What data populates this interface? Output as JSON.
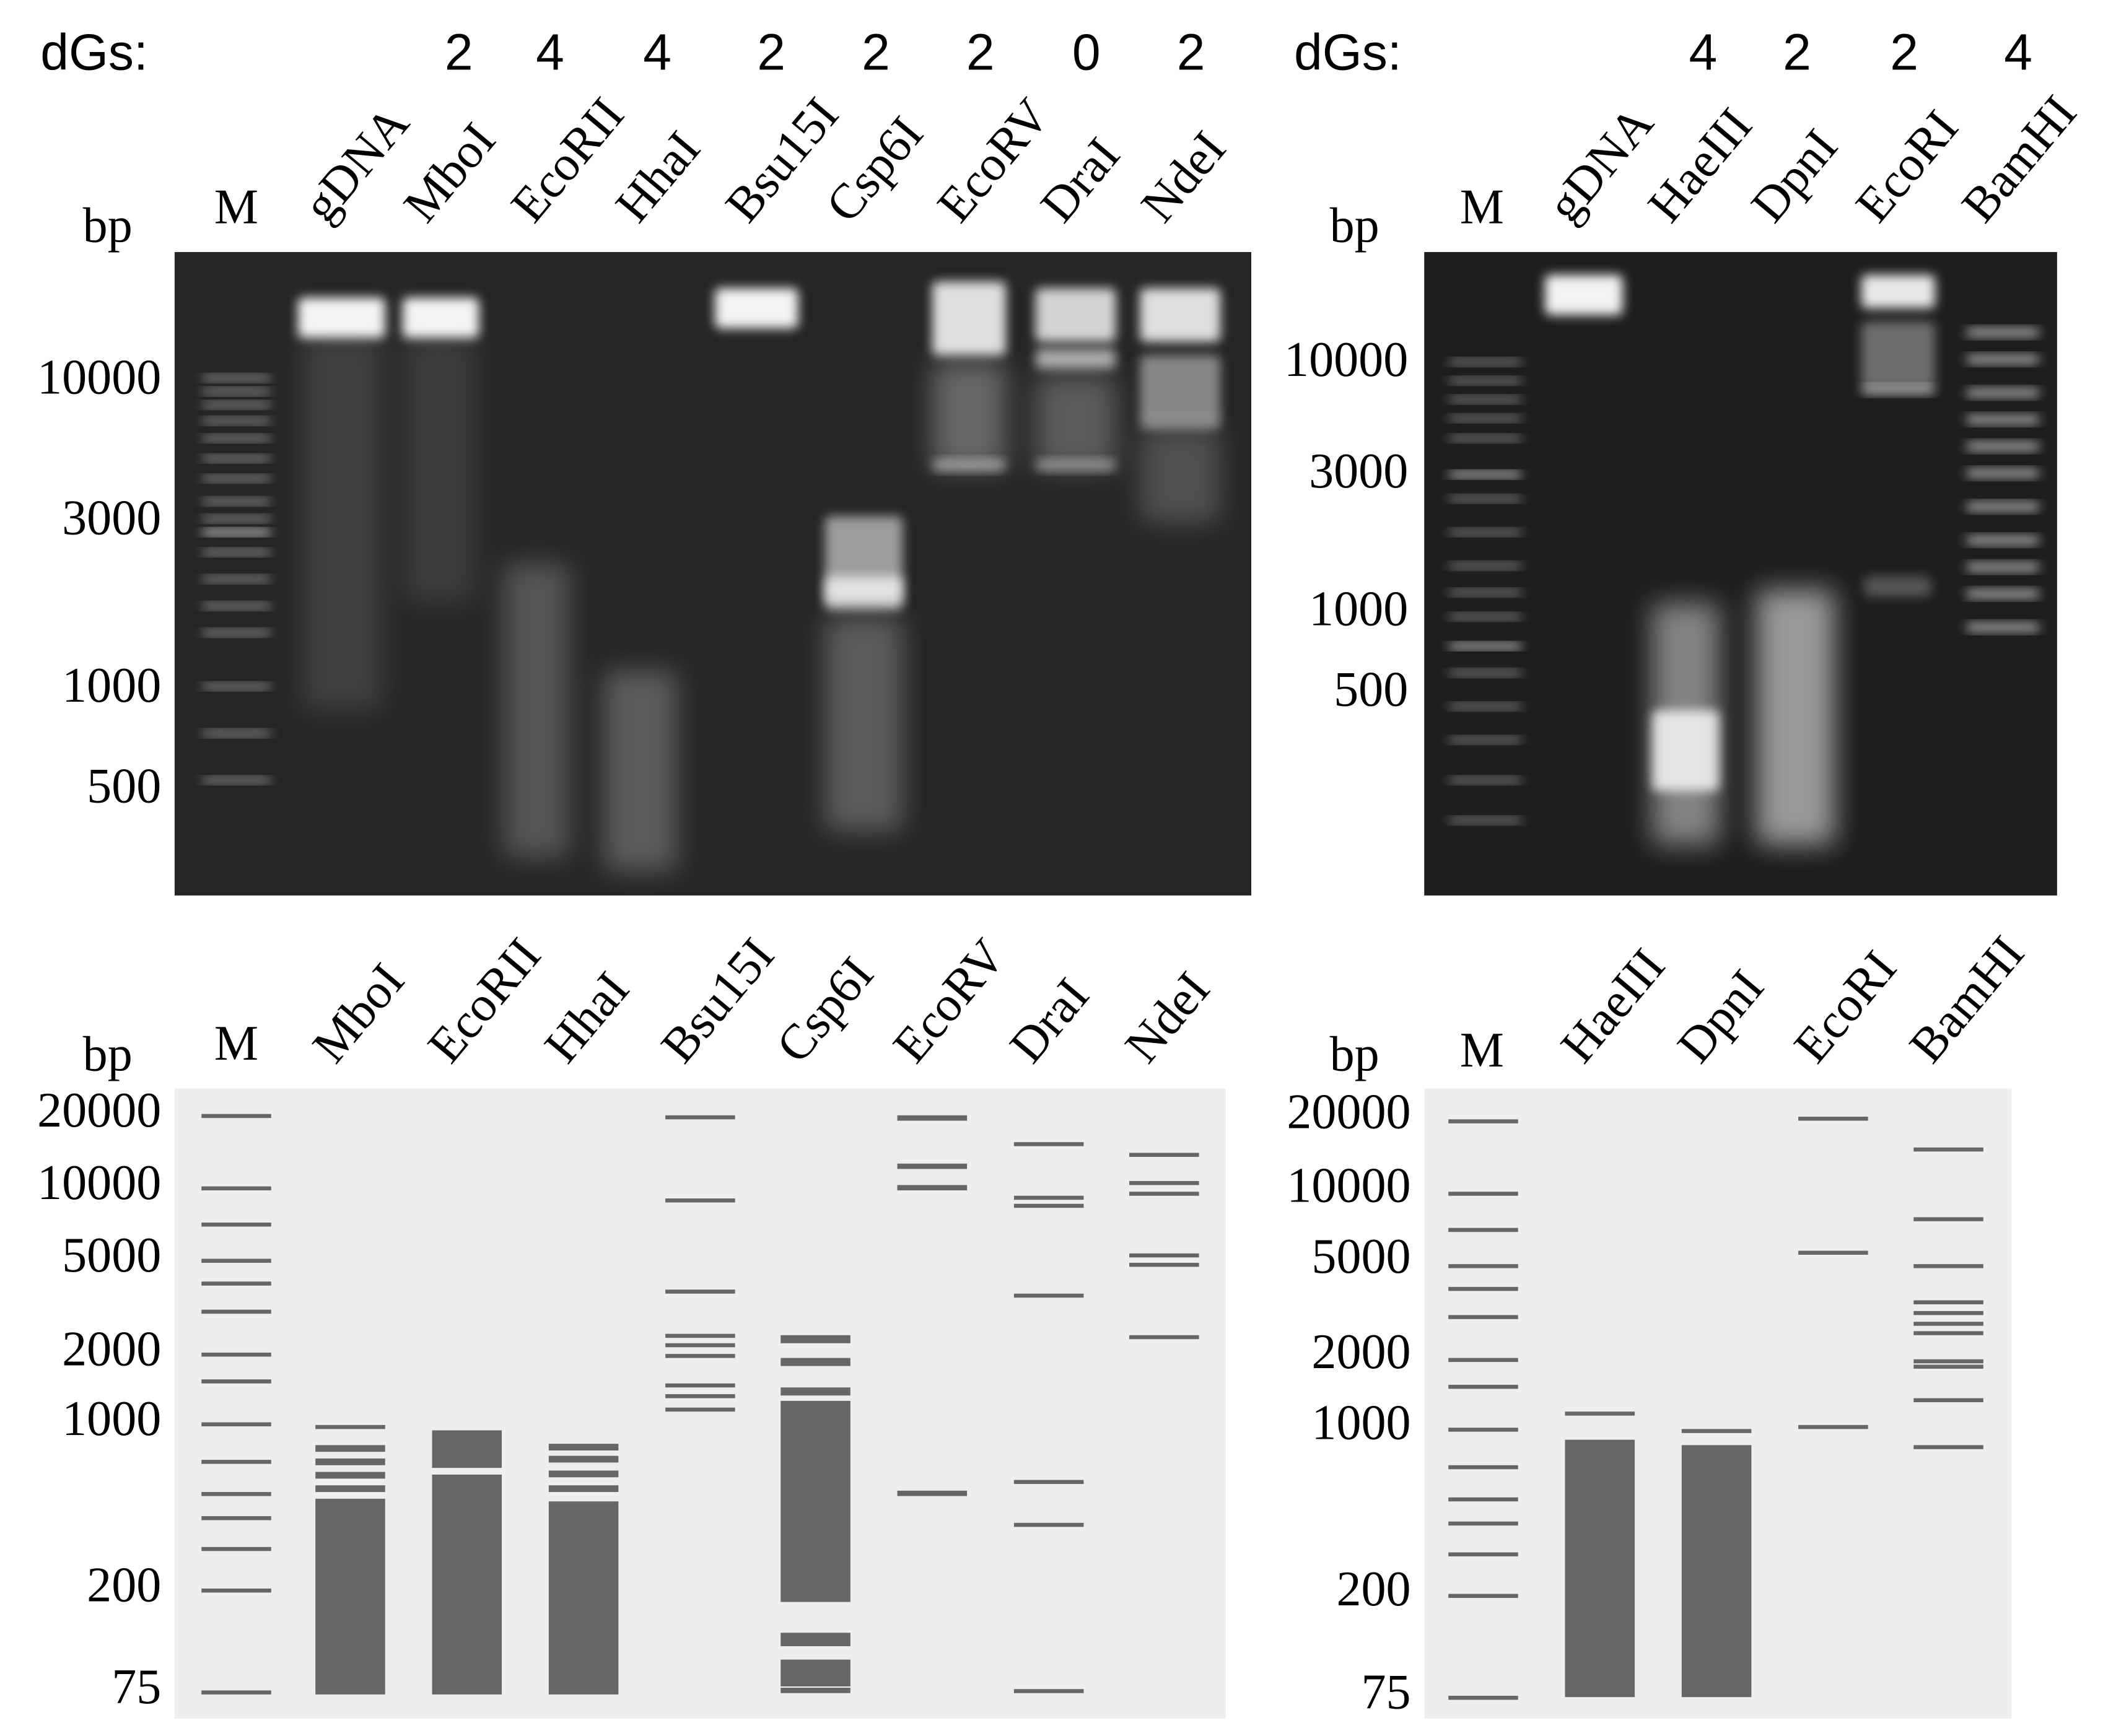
{
  "panels": [
    {
      "dgs_label": "dGs:",
      "dgs": [
        2,
        4,
        4,
        2,
        2,
        2,
        0,
        2
      ],
      "unit": "bp",
      "lanes": [
        "M",
        "gDNA",
        "MboI",
        "EcoRII",
        "HhaI",
        "Bsu15I",
        "Csp6I",
        "EcoRV",
        "DraI",
        "NdeI"
      ],
      "ticks": [
        10000,
        3000,
        1000,
        500
      ]
    },
    {
      "dgs_label": "dGs:",
      "dgs": [
        4,
        2,
        2,
        4
      ],
      "unit": "bp",
      "lanes": [
        "M",
        "gDNA",
        "HaeIII",
        "DpnI",
        "EcoRI",
        "BamHI"
      ],
      "ticks": [
        10000,
        3000,
        1000,
        500
      ]
    },
    {
      "unit": "bp",
      "lanes": [
        "M",
        "MboI",
        "EcoRII",
        "HhaI",
        "Bsu15I",
        "Csp6I",
        "EcoRV",
        "DraI",
        "NdeI"
      ],
      "ticks": [
        20000,
        10000,
        5000,
        2000,
        1000,
        200,
        75
      ]
    },
    {
      "unit": "bp",
      "lanes": [
        "M",
        "HaeIII",
        "DpnI",
        "EcoRI",
        "BamHI"
      ],
      "ticks": [
        20000,
        10000,
        5000,
        2000,
        1000,
        200,
        75
      ]
    }
  ]
}
